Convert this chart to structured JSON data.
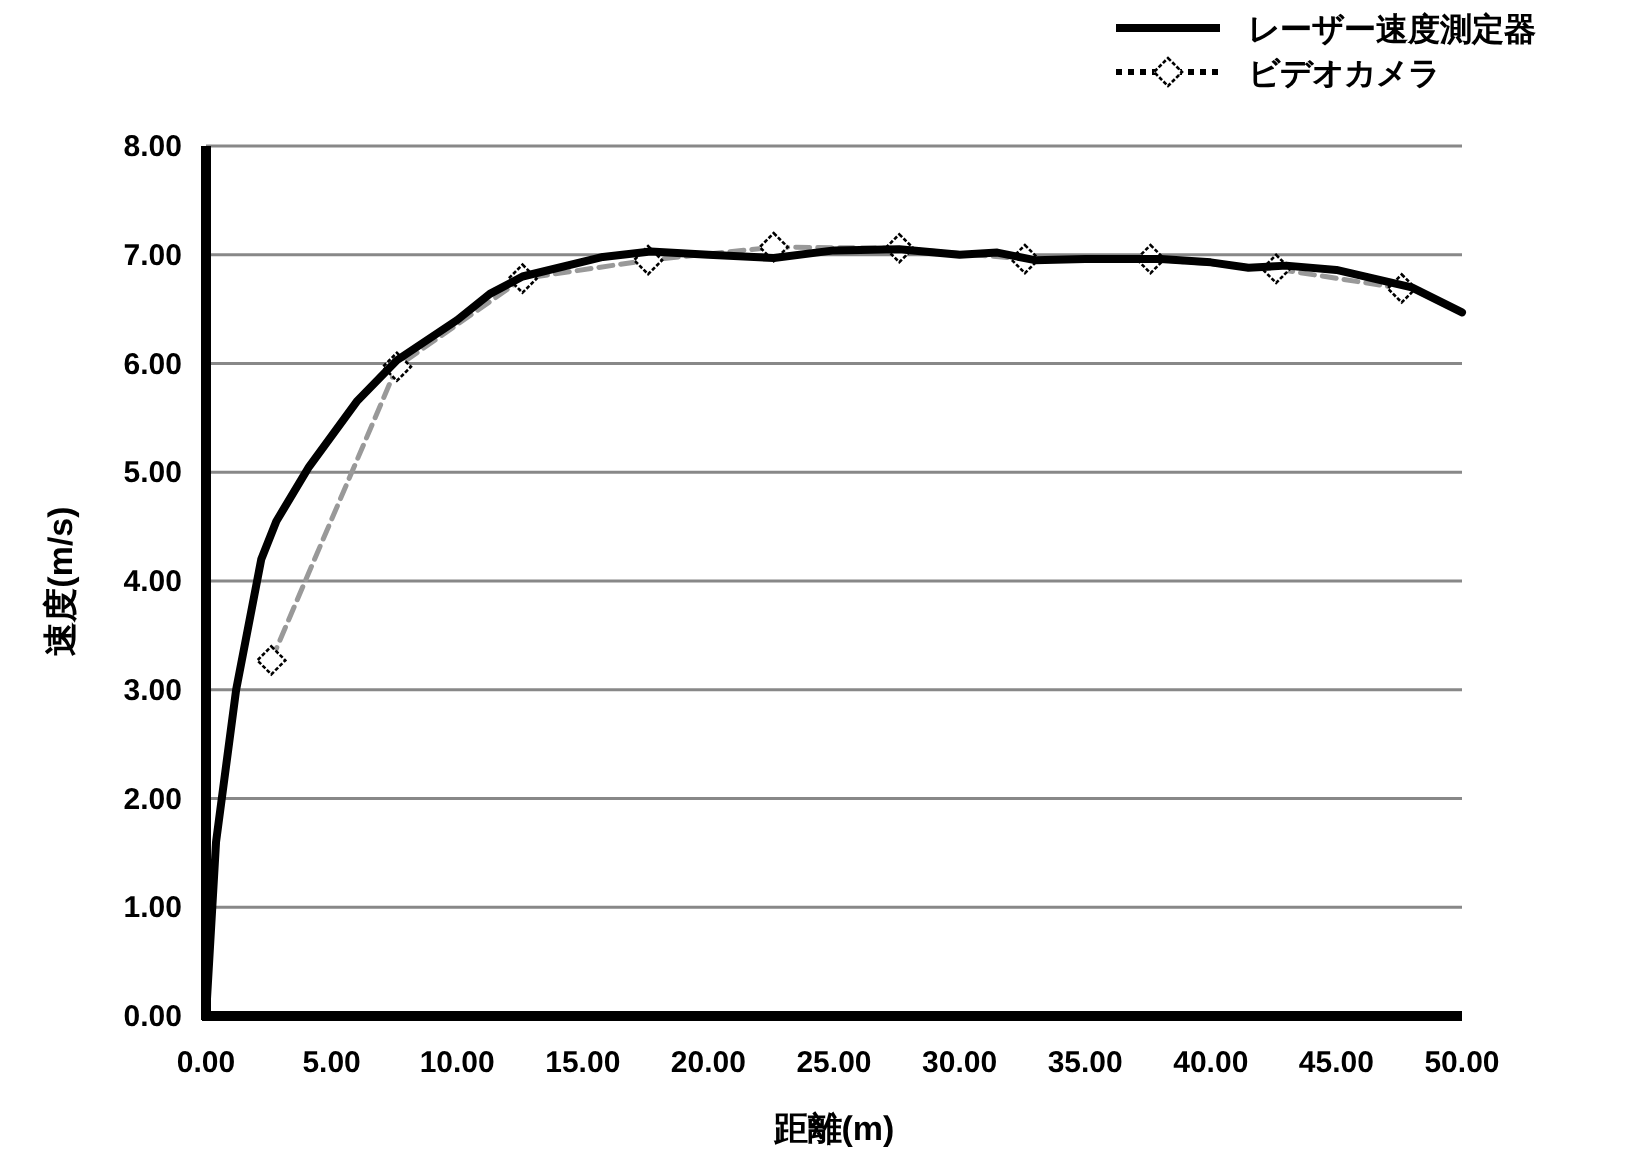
{
  "chart_data": {
    "type": "line",
    "xlabel": "距離(m)",
    "ylabel": "速度(m/s)",
    "xlim": [
      0,
      50
    ],
    "ylim": [
      0,
      8
    ],
    "xticks": [
      {
        "value": 0,
        "label": "0.00"
      },
      {
        "value": 5,
        "label": "5.00"
      },
      {
        "value": 10,
        "label": "10.00"
      },
      {
        "value": 15,
        "label": "15.00"
      },
      {
        "value": 20,
        "label": "20.00"
      },
      {
        "value": 25,
        "label": "25.00"
      },
      {
        "value": 30,
        "label": "30.00"
      },
      {
        "value": 35,
        "label": "35.00"
      },
      {
        "value": 40,
        "label": "40.00"
      },
      {
        "value": 45,
        "label": "45.00"
      },
      {
        "value": 50,
        "label": "50.00"
      }
    ],
    "yticks": [
      {
        "value": 0,
        "label": "0.00"
      },
      {
        "value": 1,
        "label": "1.00"
      },
      {
        "value": 2,
        "label": "2.00"
      },
      {
        "value": 3,
        "label": "3.00"
      },
      {
        "value": 4,
        "label": "4.00"
      },
      {
        "value": 5,
        "label": "5.00"
      },
      {
        "value": 6,
        "label": "6.00"
      },
      {
        "value": 7,
        "label": "7.00"
      },
      {
        "value": 8,
        "label": "8.00"
      }
    ],
    "grid": "y",
    "legend": "top right",
    "series": [
      {
        "name": "レーザー速度測定器",
        "color": "#000000",
        "line_style": "solid",
        "marker": "none",
        "x": [
          0,
          0.4,
          1.2,
          2.2,
          2.8,
          4.1,
          6.0,
          7.6,
          10.0,
          11.3,
          12.6,
          15.8,
          17.7,
          20,
          22.6,
          25,
          27.6,
          30,
          31.5,
          33,
          35,
          38,
          40,
          41.5,
          43,
          45,
          46.5,
          48,
          50
        ],
        "values": [
          0,
          1.6,
          3.0,
          4.2,
          4.55,
          5.05,
          5.65,
          6.03,
          6.4,
          6.64,
          6.8,
          6.98,
          7.03,
          7.0,
          6.97,
          7.04,
          7.05,
          7.0,
          7.02,
          6.95,
          6.96,
          6.96,
          6.93,
          6.88,
          6.9,
          6.86,
          6.78,
          6.7,
          6.47
        ]
      },
      {
        "name": "ビデオカメラ",
        "color": "#999999",
        "line_style": "dashed",
        "marker": "diamond",
        "x": [
          2.6,
          7.6,
          12.6,
          17.6,
          22.6,
          27.6,
          32.6,
          37.6,
          42.6,
          47.6
        ],
        "values": [
          3.27,
          5.97,
          6.78,
          6.95,
          7.07,
          7.06,
          6.96,
          6.96,
          6.87,
          6.69
        ]
      }
    ]
  }
}
